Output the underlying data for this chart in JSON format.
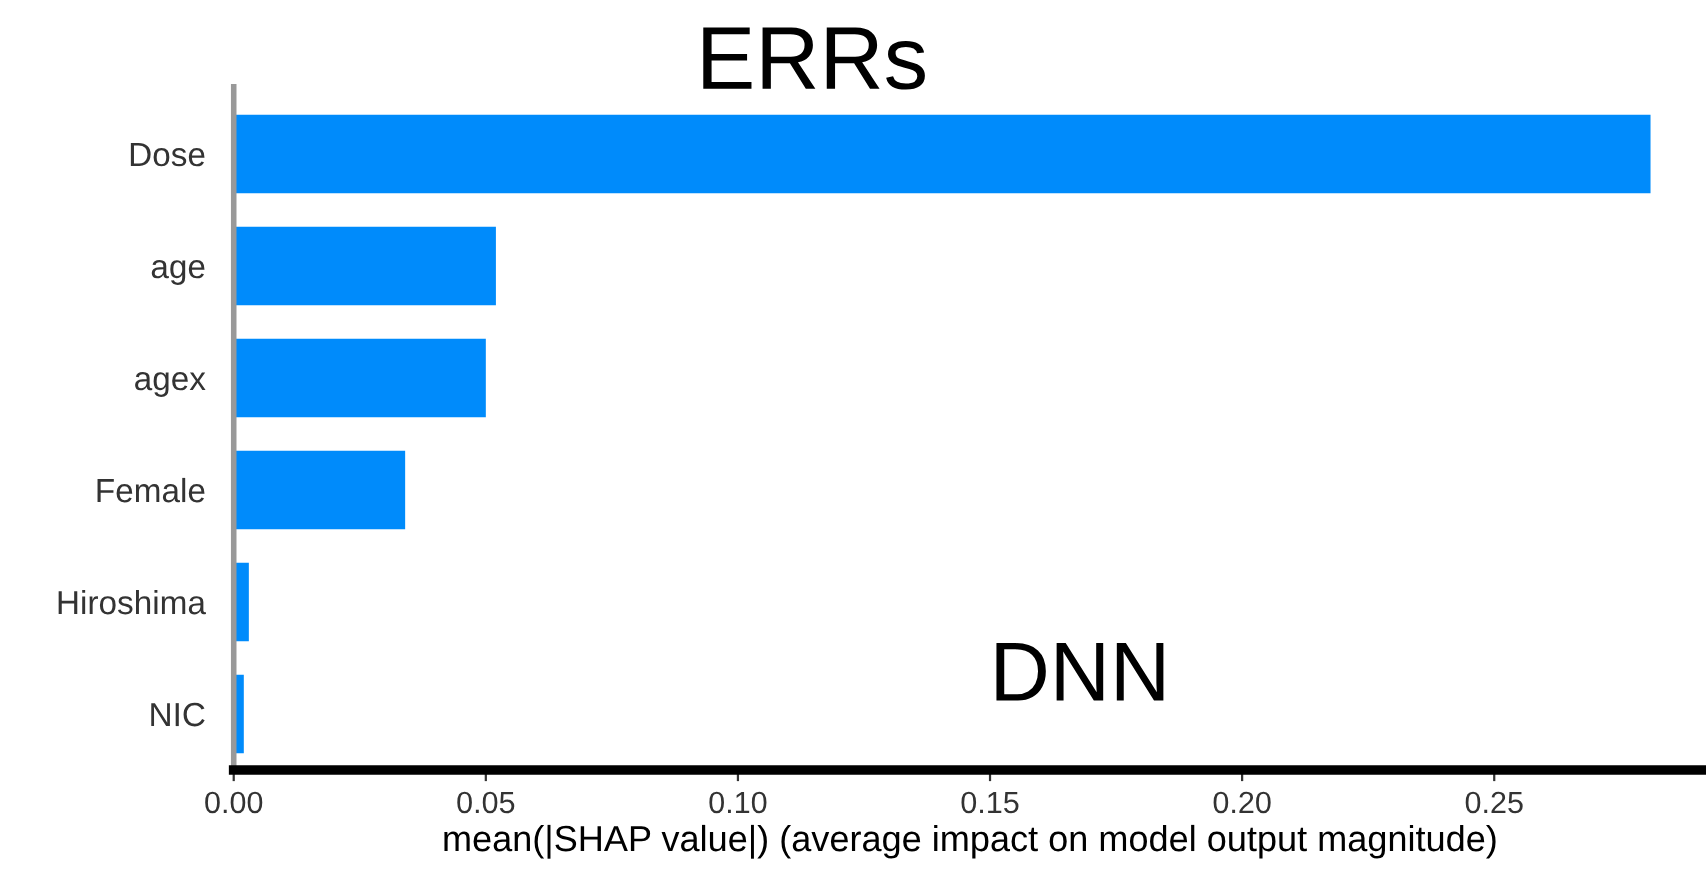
{
  "chart_data": {
    "type": "bar",
    "orientation": "horizontal",
    "title": "ERRs",
    "annotations": [
      "DNN"
    ],
    "categories": [
      "Dose",
      "age",
      "agex",
      "Female",
      "Hiroshima",
      "NIC"
    ],
    "values": [
      0.281,
      0.052,
      0.05,
      0.034,
      0.003,
      0.002
    ],
    "color": "#008bfb",
    "xlabel": "mean(|SHAP value|) (average impact on model output magnitude)",
    "xlim": [
      0,
      0.292
    ],
    "xticks": [
      {
        "value": 0,
        "label": "0.00"
      },
      {
        "value": 0.05,
        "label": "0.05"
      },
      {
        "value": 0.1,
        "label": "0.10"
      },
      {
        "value": 0.15,
        "label": "0.15"
      },
      {
        "value": 0.2,
        "label": "0.20"
      },
      {
        "value": 0.25,
        "label": "0.25"
      }
    ],
    "grid": false,
    "legend": false
  }
}
